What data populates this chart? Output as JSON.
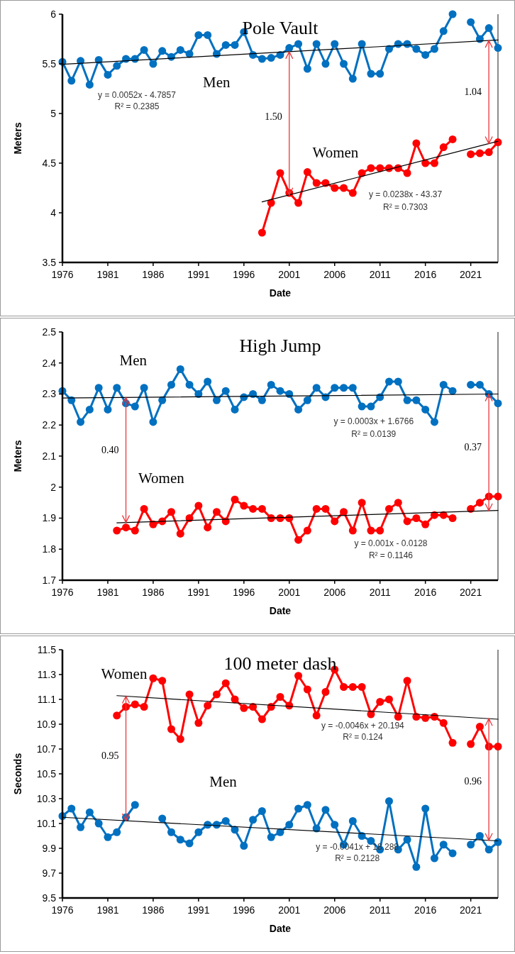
{
  "chart_data": [
    {
      "type": "line",
      "title": "Pole Vault",
      "xlabel": "Date",
      "ylabel": "Meters",
      "xlim": [
        1976,
        2024
      ],
      "xticks": [
        1976,
        1981,
        1986,
        1991,
        1996,
        2001,
        2006,
        2011,
        2016,
        2021
      ],
      "ylim": [
        3.5,
        6
      ],
      "yticks": [
        3.5,
        4,
        4.5,
        5,
        5.5,
        6
      ],
      "marker": "circle",
      "line_style": "solid",
      "x": [
        1976,
        1977,
        1978,
        1979,
        1980,
        1981,
        1982,
        1983,
        1984,
        1985,
        1986,
        1987,
        1988,
        1989,
        1990,
        1991,
        1992,
        1993,
        1994,
        1995,
        1996,
        1997,
        1998,
        1999,
        2000,
        2001,
        2002,
        2003,
        2004,
        2005,
        2006,
        2007,
        2008,
        2009,
        2010,
        2011,
        2012,
        2013,
        2014,
        2015,
        2016,
        2017,
        2018,
        2019,
        2020,
        2021,
        2022,
        2023,
        2024
      ],
      "series": [
        {
          "color": "#0070c0",
          "values": [
            5.52,
            5.33,
            5.53,
            5.29,
            5.54,
            5.39,
            5.48,
            5.55,
            5.55,
            5.64,
            5.5,
            5.63,
            5.57,
            5.64,
            5.6,
            5.79,
            5.79,
            5.6,
            5.69,
            5.69,
            5.82,
            5.59,
            5.55,
            5.56,
            5.59,
            5.66,
            5.7,
            5.45,
            5.7,
            5.5,
            5.7,
            5.5,
            5.35,
            5.7,
            5.4,
            5.4,
            5.65,
            5.7,
            5.7,
            5.65,
            5.59,
            5.65,
            5.83,
            6.0,
            null,
            5.92,
            5.75,
            5.86,
            5.66
          ]
        },
        {
          "color": "#ff0000",
          "values": [
            null,
            null,
            null,
            null,
            null,
            null,
            null,
            null,
            null,
            null,
            null,
            null,
            null,
            null,
            null,
            null,
            null,
            null,
            null,
            null,
            null,
            null,
            3.8,
            4.1,
            4.4,
            4.2,
            4.1,
            4.41,
            4.3,
            4.3,
            4.25,
            4.25,
            4.2,
            4.4,
            4.45,
            4.45,
            4.45,
            4.45,
            4.4,
            4.7,
            4.5,
            4.5,
            4.66,
            4.74,
            null,
            4.59,
            4.6,
            4.61,
            4.71
          ]
        },
        {
          "type": "line",
          "color": "#000000",
          "marker": "none",
          "x": [
            1976,
            2024
          ],
          "values": [
            5.495,
            5.74
          ]
        },
        {
          "type": "line",
          "color": "#000000",
          "marker": "none",
          "x": [
            1998,
            2024
          ],
          "values": [
            4.11,
            4.72
          ]
        }
      ],
      "annotations": [
        "1.50",
        "1.04",
        "Men",
        "Women",
        "y = 0.0052x - 4.7857",
        "R² = 0.2385",
        "y = 0.0238x - 43.37",
        "R² = 0.7303"
      ]
    },
    {
      "type": "line",
      "title": "High Jump",
      "xlabel": "Date",
      "ylabel": "Meters",
      "xlim": [
        1976,
        2024
      ],
      "xticks": [
        1976,
        1981,
        1986,
        1991,
        1996,
        2001,
        2006,
        2011,
        2016,
        2021
      ],
      "ylim": [
        1.7,
        2.5
      ],
      "yticks": [
        1.7,
        1.8,
        1.9,
        2,
        2.1,
        2.2,
        2.3,
        2.4,
        2.5
      ],
      "marker": "circle",
      "line_style": "solid",
      "x": [
        1976,
        1977,
        1978,
        1979,
        1980,
        1981,
        1982,
        1983,
        1984,
        1985,
        1986,
        1987,
        1988,
        1989,
        1990,
        1991,
        1992,
        1993,
        1994,
        1995,
        1996,
        1997,
        1998,
        1999,
        2000,
        2001,
        2002,
        2003,
        2004,
        2005,
        2006,
        2007,
        2008,
        2009,
        2010,
        2011,
        2012,
        2013,
        2014,
        2015,
        2016,
        2017,
        2018,
        2019,
        2020,
        2021,
        2022,
        2023,
        2024
      ],
      "series": [
        {
          "color": "#0070c0",
          "values": [
            2.31,
            2.28,
            2.21,
            2.25,
            2.32,
            2.25,
            2.32,
            2.27,
            2.26,
            2.32,
            2.21,
            2.28,
            2.33,
            2.38,
            2.33,
            2.3,
            2.34,
            2.28,
            2.31,
            2.25,
            2.29,
            2.3,
            2.28,
            2.33,
            2.31,
            2.3,
            2.25,
            2.28,
            2.32,
            2.29,
            2.32,
            2.32,
            2.32,
            2.26,
            2.26,
            2.29,
            2.34,
            2.34,
            2.28,
            2.28,
            2.25,
            2.21,
            2.33,
            2.31,
            null,
            2.33,
            2.33,
            2.3,
            2.27
          ]
        },
        {
          "color": "#ff0000",
          "values": [
            null,
            null,
            null,
            null,
            null,
            null,
            1.86,
            1.87,
            1.86,
            1.93,
            1.88,
            1.89,
            1.92,
            1.85,
            1.9,
            1.94,
            1.87,
            1.92,
            1.89,
            1.96,
            1.94,
            1.93,
            1.93,
            1.9,
            1.9,
            1.9,
            1.83,
            1.86,
            1.93,
            1.93,
            1.89,
            1.92,
            1.86,
            1.95,
            1.86,
            1.86,
            1.93,
            1.95,
            1.89,
            1.9,
            1.88,
            1.91,
            1.91,
            1.9,
            null,
            1.93,
            1.95,
            1.97,
            1.97
          ]
        },
        {
          "type": "line",
          "color": "#000000",
          "marker": "none",
          "x": [
            1976,
            2024
          ],
          "values": [
            2.287,
            2.3
          ]
        },
        {
          "type": "line",
          "color": "#000000",
          "marker": "none",
          "x": [
            1982,
            2024
          ],
          "values": [
            1.885,
            1.925
          ]
        }
      ],
      "annotations": [
        "0.40",
        "0.37",
        "Men",
        "Women",
        "y = 0.0003x + 1.6766",
        "R² = 0.0139",
        "y = 0.001x - 0.0128",
        "R² = 0.1146"
      ]
    },
    {
      "type": "line",
      "title": "100 meter dash",
      "xlabel": "Date",
      "ylabel": "Seconds",
      "xlim": [
        1976,
        2024
      ],
      "xticks": [
        1976,
        1981,
        1986,
        1991,
        1996,
        2001,
        2006,
        2011,
        2016,
        2021
      ],
      "ylim": [
        9.5,
        11.5
      ],
      "yticks": [
        9.5,
        9.7,
        9.9,
        10.1,
        10.3,
        10.5,
        10.7,
        10.9,
        11.1,
        11.3,
        11.5
      ],
      "marker": "circle",
      "line_style": "solid",
      "x": [
        1976,
        1977,
        1978,
        1979,
        1980,
        1981,
        1982,
        1983,
        1984,
        1985,
        1986,
        1987,
        1988,
        1989,
        1990,
        1991,
        1992,
        1993,
        1994,
        1995,
        1996,
        1997,
        1998,
        1999,
        2000,
        2001,
        2002,
        2003,
        2004,
        2005,
        2006,
        2007,
        2008,
        2009,
        2010,
        2011,
        2012,
        2013,
        2014,
        2015,
        2016,
        2017,
        2018,
        2019,
        2020,
        2021,
        2022,
        2023,
        2024
      ],
      "series": [
        {
          "color": "#0070c0",
          "values": [
            10.16,
            10.22,
            10.07,
            10.19,
            10.1,
            9.99,
            10.03,
            10.15,
            10.25,
            null,
            null,
            10.14,
            10.03,
            9.97,
            9.94,
            10.03,
            10.09,
            10.09,
            10.12,
            10.05,
            9.92,
            10.13,
            10.2,
            9.99,
            10.03,
            10.09,
            10.22,
            10.25,
            10.06,
            10.21,
            10.09,
            9.93,
            10.12,
            10.0,
            9.96,
            9.89,
            10.28,
            9.89,
            9.97,
            9.75,
            10.22,
            9.82,
            9.93,
            9.86,
            null,
            9.93,
            10.0,
            9.89,
            9.95
          ]
        },
        {
          "color": "#ff0000",
          "values": [
            null,
            null,
            null,
            null,
            null,
            null,
            10.97,
            11.04,
            11.06,
            11.04,
            11.27,
            11.25,
            10.86,
            10.78,
            11.14,
            10.91,
            11.05,
            11.14,
            11.23,
            11.1,
            11.03,
            11.04,
            10.94,
            11.04,
            11.12,
            11.05,
            11.29,
            11.18,
            10.97,
            11.16,
            11.34,
            11.2,
            11.2,
            11.2,
            10.98,
            11.08,
            11.1,
            10.96,
            11.25,
            10.96,
            10.95,
            10.96,
            10.91,
            10.75,
            null,
            10.74,
            10.88,
            10.72,
            10.72
          ]
        },
        {
          "type": "line",
          "color": "#000000",
          "marker": "none",
          "x": [
            1976,
            2024
          ],
          "values": [
            10.15,
            9.96
          ]
        },
        {
          "type": "line",
          "color": "#000000",
          "marker": "none",
          "x": [
            1982,
            2024
          ],
          "values": [
            11.13,
            10.94
          ]
        }
      ],
      "annotations": [
        "0.95",
        "0.96",
        "Women",
        "Men",
        "y = -0.0046x + 20.194",
        "R² = 0.124",
        "y = -0.0041x + 18.288",
        "R² = 0.2128"
      ]
    }
  ]
}
